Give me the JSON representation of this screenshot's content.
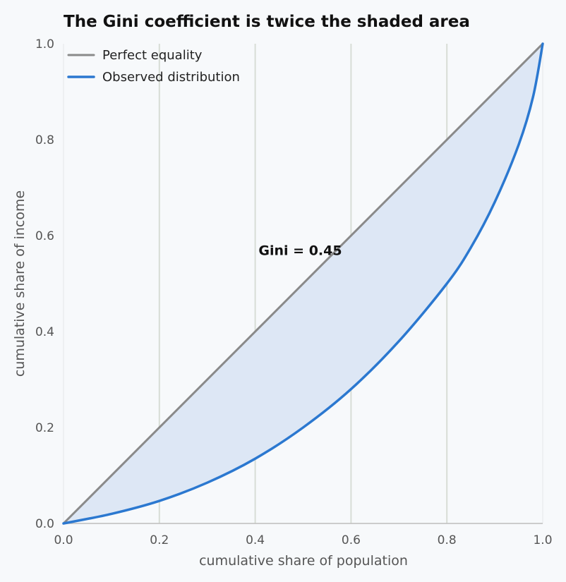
{
  "chart_data": {
    "type": "line",
    "title": "The Gini coefficient is twice the shaded area",
    "xlabel": "cumulative share of population",
    "ylabel": "cumulative share of income",
    "xlim": [
      0,
      1
    ],
    "ylim": [
      0,
      1
    ],
    "x_ticks": [
      "0.0",
      "0.2",
      "0.4",
      "0.6",
      "0.8",
      "1.0"
    ],
    "y_ticks": [
      "0.0",
      "0.2",
      "0.4",
      "0.6",
      "0.8",
      "1.0"
    ],
    "grid": "vertical",
    "legend_position": "top-left",
    "series": [
      {
        "name": "Perfect equality",
        "color": "#8a8a8a",
        "x": [
          0,
          1
        ],
        "y": [
          0,
          1
        ]
      },
      {
        "name": "Observed distribution",
        "color": "#2b78d0",
        "x": [
          0,
          0.1,
          0.2,
          0.3,
          0.4,
          0.5,
          0.6,
          0.7,
          0.8,
          0.85,
          0.9,
          0.95,
          0.98,
          1.0
        ],
        "y": [
          0,
          0.02,
          0.047,
          0.085,
          0.135,
          0.2,
          0.28,
          0.38,
          0.5,
          0.575,
          0.67,
          0.79,
          0.89,
          1.0
        ]
      }
    ],
    "shaded_area": {
      "between": [
        "Perfect equality",
        "Observed distribution"
      ],
      "color": "#dde7f5"
    },
    "annotations": [
      {
        "text": "Gini = 0.45",
        "x": 0.5,
        "y": 0.57
      }
    ]
  }
}
